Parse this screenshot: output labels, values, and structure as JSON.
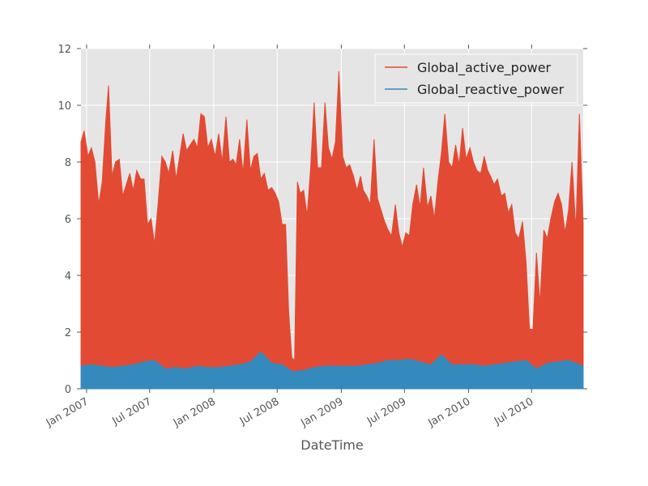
{
  "chart_data": {
    "type": "area",
    "title": "",
    "xlabel": "DateTime",
    "ylabel": "",
    "grid": true,
    "legend_position": "top-right",
    "x_range": [
      "2006-12-16",
      "2010-11-26"
    ],
    "ylim": [
      0,
      12
    ],
    "yticks": [
      0,
      2,
      4,
      6,
      8,
      10,
      12
    ],
    "xticks": [
      {
        "date": "2007-01-01",
        "label": "Jan 2007"
      },
      {
        "date": "2007-07-01",
        "label": "Jul 2007"
      },
      {
        "date": "2008-01-01",
        "label": "Jan 2008"
      },
      {
        "date": "2008-07-01",
        "label": "Jul 2008"
      },
      {
        "date": "2009-01-01",
        "label": "Jan 2009"
      },
      {
        "date": "2009-07-01",
        "label": "Jul 2009"
      },
      {
        "date": "2010-01-01",
        "label": "Jan 2010"
      },
      {
        "date": "2010-07-01",
        "label": "Jul 2010"
      }
    ],
    "series": [
      {
        "name": "Global_active_power",
        "color": "#E24A33",
        "points": [
          [
            "2006-12-16",
            8.7
          ],
          [
            "2006-12-25",
            9.1
          ],
          [
            "2007-01-05",
            8.2
          ],
          [
            "2007-01-15",
            8.5
          ],
          [
            "2007-01-25",
            8.0
          ],
          [
            "2007-02-05",
            6.5
          ],
          [
            "2007-02-15",
            7.3
          ],
          [
            "2007-02-25",
            9.4
          ],
          [
            "2007-03-05",
            10.7
          ],
          [
            "2007-03-15",
            7.5
          ],
          [
            "2007-03-25",
            8.0
          ],
          [
            "2007-04-05",
            8.1
          ],
          [
            "2007-04-15",
            6.8
          ],
          [
            "2007-04-25",
            7.2
          ],
          [
            "2007-05-05",
            7.6
          ],
          [
            "2007-05-15",
            7.0
          ],
          [
            "2007-05-25",
            7.7
          ],
          [
            "2007-06-05",
            7.4
          ],
          [
            "2007-06-15",
            7.4
          ],
          [
            "2007-06-25",
            5.8
          ],
          [
            "2007-07-05",
            6.0
          ],
          [
            "2007-07-15",
            5.1
          ],
          [
            "2007-07-25",
            6.5
          ],
          [
            "2007-08-05",
            8.2
          ],
          [
            "2007-08-15",
            8.0
          ],
          [
            "2007-08-25",
            7.6
          ],
          [
            "2007-09-05",
            8.4
          ],
          [
            "2007-09-15",
            7.4
          ],
          [
            "2007-09-25",
            8.2
          ],
          [
            "2007-10-05",
            9.0
          ],
          [
            "2007-10-15",
            8.4
          ],
          [
            "2007-10-25",
            8.6
          ],
          [
            "2007-11-05",
            8.8
          ],
          [
            "2007-11-15",
            8.5
          ],
          [
            "2007-11-25",
            9.7
          ],
          [
            "2007-12-05",
            9.6
          ],
          [
            "2007-12-15",
            8.5
          ],
          [
            "2007-12-25",
            8.8
          ],
          [
            "2008-01-05",
            8.2
          ],
          [
            "2008-01-15",
            9.0
          ],
          [
            "2008-01-25",
            8.0
          ],
          [
            "2008-02-05",
            9.6
          ],
          [
            "2008-02-15",
            8.0
          ],
          [
            "2008-02-25",
            8.1
          ],
          [
            "2008-03-05",
            7.9
          ],
          [
            "2008-03-15",
            8.8
          ],
          [
            "2008-03-25",
            7.6
          ],
          [
            "2008-04-05",
            9.5
          ],
          [
            "2008-04-15",
            7.7
          ],
          [
            "2008-04-25",
            8.2
          ],
          [
            "2008-05-05",
            8.3
          ],
          [
            "2008-05-15",
            7.4
          ],
          [
            "2008-05-25",
            7.6
          ],
          [
            "2008-06-05",
            7.0
          ],
          [
            "2008-06-15",
            7.1
          ],
          [
            "2008-06-25",
            6.9
          ],
          [
            "2008-07-05",
            6.6
          ],
          [
            "2008-07-15",
            5.8
          ],
          [
            "2008-07-25",
            5.8
          ],
          [
            "2008-08-03",
            2.7
          ],
          [
            "2008-08-12",
            1.1
          ],
          [
            "2008-08-20",
            1.0
          ],
          [
            "2008-08-28",
            7.3
          ],
          [
            "2008-09-05",
            6.9
          ],
          [
            "2008-09-15",
            7.0
          ],
          [
            "2008-09-25",
            6.1
          ],
          [
            "2008-10-05",
            7.8
          ],
          [
            "2008-10-15",
            10.1
          ],
          [
            "2008-10-25",
            7.8
          ],
          [
            "2008-11-05",
            7.8
          ],
          [
            "2008-11-15",
            10.1
          ],
          [
            "2008-11-25",
            8.5
          ],
          [
            "2008-12-05",
            8.1
          ],
          [
            "2008-12-15",
            8.7
          ],
          [
            "2008-12-25",
            11.2
          ],
          [
            "2009-01-05",
            8.2
          ],
          [
            "2009-01-15",
            7.8
          ],
          [
            "2009-01-25",
            7.9
          ],
          [
            "2009-02-05",
            7.5
          ],
          [
            "2009-02-15",
            7.0
          ],
          [
            "2009-02-25",
            7.5
          ],
          [
            "2009-03-05",
            7.0
          ],
          [
            "2009-03-15",
            6.8
          ],
          [
            "2009-03-25",
            6.5
          ],
          [
            "2009-04-05",
            8.8
          ],
          [
            "2009-04-15",
            6.7
          ],
          [
            "2009-04-25",
            6.3
          ],
          [
            "2009-05-05",
            5.9
          ],
          [
            "2009-05-15",
            5.6
          ],
          [
            "2009-05-25",
            5.4
          ],
          [
            "2009-06-05",
            6.5
          ],
          [
            "2009-06-15",
            5.5
          ],
          [
            "2009-06-25",
            5.0
          ],
          [
            "2009-07-05",
            5.5
          ],
          [
            "2009-07-15",
            5.4
          ],
          [
            "2009-07-25",
            6.5
          ],
          [
            "2009-08-05",
            7.2
          ],
          [
            "2009-08-15",
            6.4
          ],
          [
            "2009-08-25",
            7.8
          ],
          [
            "2009-09-05",
            6.4
          ],
          [
            "2009-09-15",
            6.8
          ],
          [
            "2009-09-25",
            6.0
          ],
          [
            "2009-10-05",
            7.3
          ],
          [
            "2009-10-15",
            8.3
          ],
          [
            "2009-10-25",
            9.7
          ],
          [
            "2009-11-05",
            8.0
          ],
          [
            "2009-11-15",
            7.8
          ],
          [
            "2009-11-25",
            8.6
          ],
          [
            "2009-12-05",
            7.9
          ],
          [
            "2009-12-15",
            9.2
          ],
          [
            "2009-12-25",
            8.1
          ],
          [
            "2010-01-05",
            8.5
          ],
          [
            "2010-01-15",
            8.0
          ],
          [
            "2010-01-25",
            7.7
          ],
          [
            "2010-02-05",
            7.6
          ],
          [
            "2010-02-15",
            8.2
          ],
          [
            "2010-02-25",
            7.7
          ],
          [
            "2010-03-05",
            7.5
          ],
          [
            "2010-03-15",
            7.2
          ],
          [
            "2010-03-25",
            7.4
          ],
          [
            "2010-04-05",
            6.8
          ],
          [
            "2010-04-15",
            6.9
          ],
          [
            "2010-04-25",
            6.2
          ],
          [
            "2010-05-05",
            6.5
          ],
          [
            "2010-05-15",
            5.5
          ],
          [
            "2010-05-25",
            5.3
          ],
          [
            "2010-06-05",
            5.9
          ],
          [
            "2010-06-15",
            4.5
          ],
          [
            "2010-06-25",
            2.1
          ],
          [
            "2010-07-05",
            2.1
          ],
          [
            "2010-07-15",
            4.8
          ],
          [
            "2010-07-25",
            3.0
          ],
          [
            "2010-08-05",
            5.6
          ],
          [
            "2010-08-15",
            5.3
          ],
          [
            "2010-08-25",
            6.0
          ],
          [
            "2010-09-05",
            6.6
          ],
          [
            "2010-09-15",
            6.9
          ],
          [
            "2010-09-25",
            6.5
          ],
          [
            "2010-10-05",
            5.5
          ],
          [
            "2010-10-15",
            6.3
          ],
          [
            "2010-10-25",
            8.0
          ],
          [
            "2010-11-05",
            5.6
          ],
          [
            "2010-11-15",
            9.7
          ],
          [
            "2010-11-26",
            5.8
          ]
        ]
      },
      {
        "name": "Global_reactive_power",
        "color": "#348ABD",
        "points": [
          [
            "2006-12-16",
            0.8
          ],
          [
            "2007-01-15",
            0.85
          ],
          [
            "2007-02-15",
            0.8
          ],
          [
            "2007-03-15",
            0.75
          ],
          [
            "2007-04-15",
            0.8
          ],
          [
            "2007-05-15",
            0.85
          ],
          [
            "2007-06-15",
            0.95
          ],
          [
            "2007-07-15",
            1.0
          ],
          [
            "2007-08-15",
            0.7
          ],
          [
            "2007-09-15",
            0.75
          ],
          [
            "2007-10-15",
            0.7
          ],
          [
            "2007-11-15",
            0.8
          ],
          [
            "2007-12-15",
            0.75
          ],
          [
            "2008-01-15",
            0.75
          ],
          [
            "2008-02-15",
            0.8
          ],
          [
            "2008-03-15",
            0.85
          ],
          [
            "2008-04-15",
            0.95
          ],
          [
            "2008-05-15",
            1.3
          ],
          [
            "2008-06-15",
            0.9
          ],
          [
            "2008-07-15",
            0.85
          ],
          [
            "2008-08-15",
            0.6
          ],
          [
            "2008-09-15",
            0.65
          ],
          [
            "2008-10-15",
            0.75
          ],
          [
            "2008-11-15",
            0.8
          ],
          [
            "2008-12-15",
            0.8
          ],
          [
            "2009-01-15",
            0.8
          ],
          [
            "2009-02-15",
            0.8
          ],
          [
            "2009-03-15",
            0.85
          ],
          [
            "2009-04-15",
            0.9
          ],
          [
            "2009-05-15",
            1.0
          ],
          [
            "2009-06-15",
            1.0
          ],
          [
            "2009-07-15",
            1.05
          ],
          [
            "2009-08-15",
            0.95
          ],
          [
            "2009-09-15",
            0.85
          ],
          [
            "2009-10-15",
            1.2
          ],
          [
            "2009-11-15",
            0.85
          ],
          [
            "2009-12-15",
            0.85
          ],
          [
            "2010-01-15",
            0.85
          ],
          [
            "2010-02-15",
            0.8
          ],
          [
            "2010-03-15",
            0.85
          ],
          [
            "2010-04-15",
            0.9
          ],
          [
            "2010-05-15",
            0.95
          ],
          [
            "2010-06-15",
            1.0
          ],
          [
            "2010-07-15",
            0.7
          ],
          [
            "2010-08-15",
            0.9
          ],
          [
            "2010-09-15",
            0.95
          ],
          [
            "2010-10-15",
            1.0
          ],
          [
            "2010-11-26",
            0.8
          ]
        ]
      }
    ]
  }
}
